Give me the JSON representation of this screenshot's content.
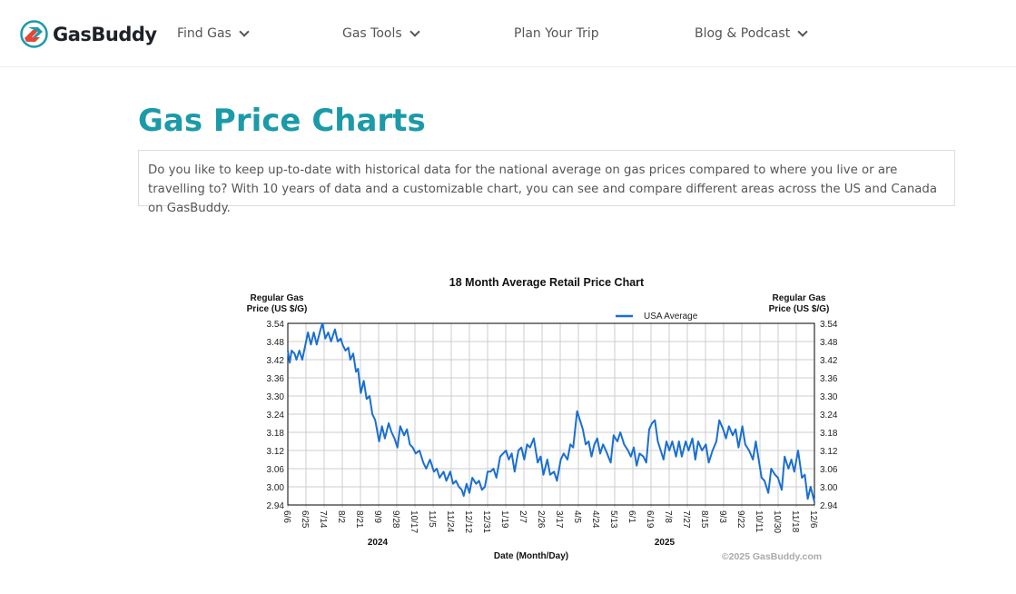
{
  "header": {
    "brand": "GasBuddy",
    "nav": [
      {
        "label": "Find Gas",
        "dropdown": true
      },
      {
        "label": "Gas Tools",
        "dropdown": true
      },
      {
        "label": "Plan Your Trip",
        "dropdown": false
      },
      {
        "label": "Blog & Podcast",
        "dropdown": true
      }
    ]
  },
  "page": {
    "title": "Gas Price Charts",
    "description": "Do you like to keep up-to-date with historical data for the national average on gas prices compared to where you live or are travelling to? With 10 years of data and a customizable chart, you can see and compare different areas across the US and Canada on GasBuddy."
  },
  "chart_data": {
    "type": "line",
    "title": "18 Month Average Retail Price Chart",
    "ylabel_left": "Regular Gas Price (US $/G)",
    "ylabel_right": "Regular Gas Price (US $/G)",
    "xlabel": "Date (Month/Day)",
    "copyright": "©2025 GasBuddy.com",
    "legend": "top-right",
    "grid": true,
    "color": "#1a6fd1",
    "ylim": [
      2.94,
      3.54
    ],
    "y_ticks": [
      "3.54",
      "3.48",
      "3.42",
      "3.36",
      "3.30",
      "3.24",
      "3.18",
      "3.12",
      "3.06",
      "3.00",
      "2.94"
    ],
    "x_ticks": [
      "6/6",
      "6/25",
      "7/14",
      "8/2",
      "8/21",
      "9/9",
      "9/28",
      "10/17",
      "11/5",
      "11/24",
      "12/12",
      "12/31",
      "1/19",
      "2/7",
      "2/26",
      "3/17",
      "4/5",
      "4/24",
      "5/13",
      "6/1",
      "6/19",
      "7/8",
      "7/27",
      "8/15",
      "9/3",
      "9/22",
      "10/11",
      "10/30",
      "11/18",
      "12/6"
    ],
    "year_labels": [
      "2024",
      "2025"
    ],
    "xlim": [
      "2024-06-06",
      "2025-12-06"
    ],
    "series": [
      {
        "name": "USA Average",
        "points": [
          [
            "2024-06-06",
            3.45
          ],
          [
            "2024-06-08",
            3.41
          ],
          [
            "2024-06-10",
            3.45
          ],
          [
            "2024-06-13",
            3.44
          ],
          [
            "2024-06-15",
            3.42
          ],
          [
            "2024-06-18",
            3.45
          ],
          [
            "2024-06-21",
            3.42
          ],
          [
            "2024-06-25",
            3.48
          ],
          [
            "2024-06-27",
            3.51
          ],
          [
            "2024-06-30",
            3.47
          ],
          [
            "2024-07-03",
            3.51
          ],
          [
            "2024-07-06",
            3.47
          ],
          [
            "2024-07-10",
            3.52
          ],
          [
            "2024-07-12",
            3.54
          ],
          [
            "2024-07-15",
            3.49
          ],
          [
            "2024-07-18",
            3.51
          ],
          [
            "2024-07-21",
            3.48
          ],
          [
            "2024-07-25",
            3.52
          ],
          [
            "2024-07-28",
            3.48
          ],
          [
            "2024-07-31",
            3.49
          ],
          [
            "2024-08-02",
            3.47
          ],
          [
            "2024-08-05",
            3.45
          ],
          [
            "2024-08-08",
            3.46
          ],
          [
            "2024-08-10",
            3.42
          ],
          [
            "2024-08-13",
            3.44
          ],
          [
            "2024-08-16",
            3.38
          ],
          [
            "2024-08-18",
            3.39
          ],
          [
            "2024-08-21",
            3.31
          ],
          [
            "2024-08-24",
            3.35
          ],
          [
            "2024-08-27",
            3.29
          ],
          [
            "2024-08-30",
            3.3
          ],
          [
            "2024-09-02",
            3.24
          ],
          [
            "2024-09-05",
            3.22
          ],
          [
            "2024-09-09",
            3.15
          ],
          [
            "2024-09-12",
            3.2
          ],
          [
            "2024-09-15",
            3.16
          ],
          [
            "2024-09-19",
            3.21
          ],
          [
            "2024-09-22",
            3.18
          ],
          [
            "2024-09-25",
            3.16
          ],
          [
            "2024-09-28",
            3.13
          ],
          [
            "2024-10-01",
            3.2
          ],
          [
            "2024-10-05",
            3.17
          ],
          [
            "2024-10-08",
            3.19
          ],
          [
            "2024-10-11",
            3.14
          ],
          [
            "2024-10-14",
            3.13
          ],
          [
            "2024-10-17",
            3.11
          ],
          [
            "2024-10-21",
            3.12
          ],
          [
            "2024-10-25",
            3.08
          ],
          [
            "2024-10-28",
            3.06
          ],
          [
            "2024-11-01",
            3.09
          ],
          [
            "2024-11-05",
            3.05
          ],
          [
            "2024-11-08",
            3.06
          ],
          [
            "2024-11-11",
            3.03
          ],
          [
            "2024-11-15",
            3.05
          ],
          [
            "2024-11-18",
            3.02
          ],
          [
            "2024-11-22",
            3.05
          ],
          [
            "2024-11-25",
            3.01
          ],
          [
            "2024-11-28",
            3.02
          ],
          [
            "2024-12-01",
            3.0
          ],
          [
            "2024-12-04",
            2.99
          ],
          [
            "2024-12-06",
            2.97
          ],
          [
            "2024-12-09",
            3.01
          ],
          [
            "2024-12-12",
            2.98
          ],
          [
            "2024-12-15",
            3.03
          ],
          [
            "2024-12-19",
            3.01
          ],
          [
            "2024-12-22",
            3.02
          ],
          [
            "2024-12-25",
            2.99
          ],
          [
            "2024-12-28",
            3.0
          ],
          [
            "2024-12-31",
            3.05
          ],
          [
            "2025-01-03",
            3.05
          ],
          [
            "2025-01-06",
            3.06
          ],
          [
            "2025-01-09",
            3.03
          ],
          [
            "2025-01-13",
            3.1
          ],
          [
            "2025-01-16",
            3.11
          ],
          [
            "2025-01-19",
            3.12
          ],
          [
            "2025-01-22",
            3.09
          ],
          [
            "2025-01-25",
            3.11
          ],
          [
            "2025-01-28",
            3.05
          ],
          [
            "2025-02-01",
            3.12
          ],
          [
            "2025-02-04",
            3.13
          ],
          [
            "2025-02-07",
            3.09
          ],
          [
            "2025-02-10",
            3.14
          ],
          [
            "2025-02-13",
            3.13
          ],
          [
            "2025-02-17",
            3.16
          ],
          [
            "2025-02-21",
            3.08
          ],
          [
            "2025-02-24",
            3.1
          ],
          [
            "2025-02-27",
            3.04
          ],
          [
            "2025-03-03",
            3.09
          ],
          [
            "2025-03-06",
            3.04
          ],
          [
            "2025-03-10",
            3.05
          ],
          [
            "2025-03-13",
            3.02
          ],
          [
            "2025-03-17",
            3.09
          ],
          [
            "2025-03-20",
            3.11
          ],
          [
            "2025-03-24",
            3.09
          ],
          [
            "2025-03-27",
            3.14
          ],
          [
            "2025-03-30",
            3.13
          ],
          [
            "2025-04-03",
            3.25
          ],
          [
            "2025-04-06",
            3.22
          ],
          [
            "2025-04-09",
            3.19
          ],
          [
            "2025-04-12",
            3.14
          ],
          [
            "2025-04-15",
            3.15
          ],
          [
            "2025-04-18",
            3.1
          ],
          [
            "2025-04-21",
            3.14
          ],
          [
            "2025-04-24",
            3.16
          ],
          [
            "2025-04-27",
            3.11
          ],
          [
            "2025-04-30",
            3.14
          ],
          [
            "2025-05-03",
            3.12
          ],
          [
            "2025-05-08",
            3.08
          ],
          [
            "2025-05-11",
            3.17
          ],
          [
            "2025-05-15",
            3.15
          ],
          [
            "2025-05-18",
            3.18
          ],
          [
            "2025-05-22",
            3.14
          ],
          [
            "2025-05-26",
            3.12
          ],
          [
            "2025-05-29",
            3.1
          ],
          [
            "2025-06-01",
            3.13
          ],
          [
            "2025-06-04",
            3.07
          ],
          [
            "2025-06-07",
            3.11
          ],
          [
            "2025-06-11",
            3.1
          ],
          [
            "2025-06-14",
            3.08
          ],
          [
            "2025-06-17",
            3.19
          ],
          [
            "2025-06-20",
            3.21
          ],
          [
            "2025-06-23",
            3.22
          ],
          [
            "2025-06-26",
            3.15
          ],
          [
            "2025-06-29",
            3.12
          ],
          [
            "2025-07-02",
            3.09
          ],
          [
            "2025-07-05",
            3.15
          ],
          [
            "2025-07-08",
            3.12
          ],
          [
            "2025-07-11",
            3.15
          ],
          [
            "2025-07-15",
            3.1
          ],
          [
            "2025-07-18",
            3.15
          ],
          [
            "2025-07-21",
            3.1
          ],
          [
            "2025-07-25",
            3.15
          ],
          [
            "2025-07-28",
            3.12
          ],
          [
            "2025-08-01",
            3.16
          ],
          [
            "2025-08-04",
            3.09
          ],
          [
            "2025-08-07",
            3.15
          ],
          [
            "2025-08-11",
            3.12
          ],
          [
            "2025-08-15",
            3.14
          ],
          [
            "2025-08-18",
            3.08
          ],
          [
            "2025-08-22",
            3.12
          ],
          [
            "2025-08-26",
            3.15
          ],
          [
            "2025-08-29",
            3.22
          ],
          [
            "2025-09-02",
            3.19
          ],
          [
            "2025-09-05",
            3.16
          ],
          [
            "2025-09-08",
            3.2
          ],
          [
            "2025-09-12",
            3.17
          ],
          [
            "2025-09-15",
            3.19
          ],
          [
            "2025-09-18",
            3.13
          ],
          [
            "2025-09-22",
            3.2
          ],
          [
            "2025-09-25",
            3.14
          ],
          [
            "2025-09-29",
            3.12
          ],
          [
            "2025-10-03",
            3.09
          ],
          [
            "2025-10-06",
            3.15
          ],
          [
            "2025-10-09",
            3.09
          ],
          [
            "2025-10-12",
            3.03
          ],
          [
            "2025-10-15",
            3.02
          ],
          [
            "2025-10-19",
            2.98
          ],
          [
            "2025-10-22",
            3.06
          ],
          [
            "2025-10-26",
            3.04
          ],
          [
            "2025-10-29",
            3.03
          ],
          [
            "2025-11-02",
            2.99
          ],
          [
            "2025-11-05",
            3.1
          ],
          [
            "2025-11-09",
            3.06
          ],
          [
            "2025-11-12",
            3.09
          ],
          [
            "2025-11-15",
            3.05
          ],
          [
            "2025-11-19",
            3.12
          ],
          [
            "2025-11-23",
            3.03
          ],
          [
            "2025-11-26",
            3.04
          ],
          [
            "2025-11-29",
            2.96
          ],
          [
            "2025-12-02",
            3.0
          ],
          [
            "2025-12-06",
            2.95
          ]
        ]
      }
    ]
  }
}
